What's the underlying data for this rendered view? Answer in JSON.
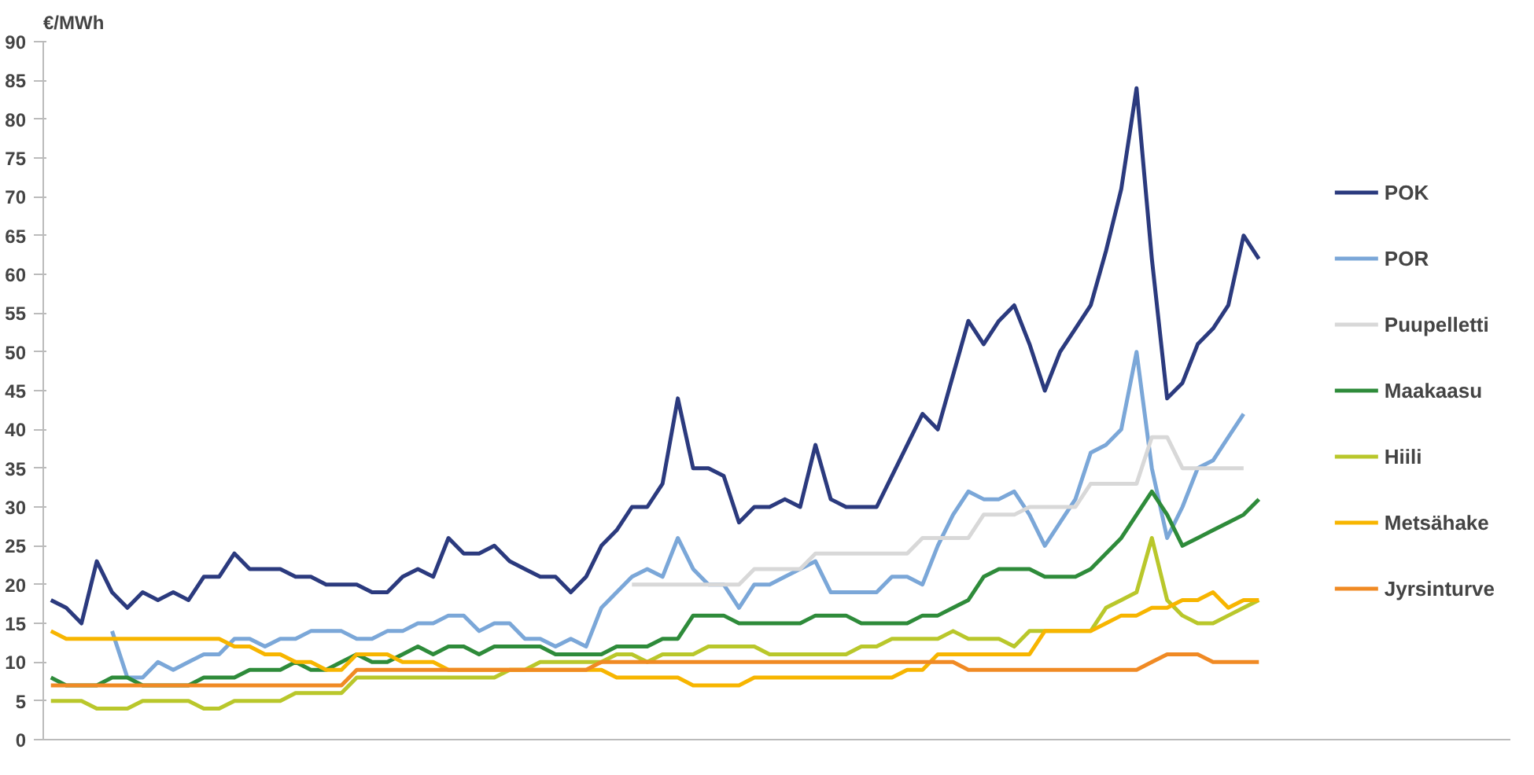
{
  "chart_data": {
    "type": "line",
    "ylabel": "€/MWh",
    "categories": [
      null,
      null,
      null,
      null,
      null,
      null,
      null,
      null,
      null,
      null,
      null,
      null,
      null,
      null,
      null,
      null,
      null,
      null,
      null,
      null,
      null,
      null,
      null,
      null,
      null,
      null,
      null,
      null,
      null,
      null,
      null,
      null,
      null,
      null,
      null,
      null,
      null,
      null,
      null,
      null,
      null,
      null,
      null,
      null,
      null,
      null,
      null,
      null,
      null,
      null,
      null,
      null,
      null,
      null,
      null,
      null,
      null,
      null,
      null,
      null,
      null,
      null,
      null,
      null,
      null,
      null,
      null,
      null,
      null,
      null,
      null,
      null,
      null,
      null,
      null,
      null,
      null,
      null,
      null,
      null
    ],
    "ylim": [
      0,
      90
    ],
    "yticks": [
      0,
      5,
      10,
      15,
      20,
      25,
      30,
      35,
      40,
      45,
      50,
      55,
      60,
      65,
      70,
      75,
      80,
      85,
      90
    ],
    "grid": false,
    "legend": "right",
    "tick_labels": "y",
    "series": [
      {
        "name": "POK",
        "color": "#2b3a7e",
        "values": [
          18,
          17,
          15,
          23,
          19,
          17,
          19,
          18,
          19,
          18,
          21,
          21,
          24,
          22,
          22,
          22,
          21,
          21,
          20,
          20,
          20,
          19,
          19,
          21,
          22,
          21,
          26,
          24,
          24,
          25,
          23,
          22,
          21,
          21,
          19,
          21,
          25,
          27,
          30,
          30,
          33,
          44,
          35,
          35,
          34,
          28,
          30,
          30,
          31,
          30,
          38,
          31,
          30,
          30,
          30,
          34,
          38,
          42,
          40,
          47,
          54,
          51,
          54,
          56,
          51,
          45,
          50,
          53,
          56,
          63,
          71,
          84,
          62,
          44,
          46,
          51,
          53,
          56,
          65,
          62
        ]
      },
      {
        "name": "POR",
        "color": "#7ba7d8",
        "values": [
          null,
          null,
          null,
          null,
          14,
          8,
          8,
          10,
          9,
          10,
          11,
          11,
          13,
          13,
          12,
          13,
          13,
          14,
          14,
          14,
          13,
          13,
          14,
          14,
          15,
          15,
          16,
          16,
          14,
          15,
          15,
          13,
          13,
          12,
          13,
          12,
          17,
          19,
          21,
          22,
          21,
          26,
          22,
          20,
          20,
          17,
          20,
          20,
          21,
          22,
          23,
          19,
          19,
          19,
          19,
          21,
          21,
          20,
          25,
          29,
          32,
          31,
          31,
          32,
          29,
          25,
          28,
          31,
          37,
          38,
          40,
          50,
          35,
          26,
          30,
          35,
          36,
          39,
          42,
          null
        ]
      },
      {
        "name": "Puupelletti",
        "color": "#d8d8d8",
        "values": [
          null,
          null,
          null,
          null,
          null,
          null,
          null,
          null,
          null,
          null,
          null,
          null,
          null,
          null,
          null,
          null,
          null,
          null,
          null,
          null,
          null,
          null,
          null,
          null,
          null,
          null,
          null,
          null,
          null,
          null,
          null,
          null,
          null,
          null,
          null,
          null,
          null,
          null,
          20,
          20,
          20,
          20,
          20,
          20,
          20,
          20,
          22,
          22,
          22,
          22,
          24,
          24,
          24,
          24,
          24,
          24,
          24,
          26,
          26,
          26,
          26,
          29,
          29,
          29,
          30,
          30,
          30,
          30,
          33,
          33,
          33,
          33,
          39,
          39,
          35,
          35,
          35,
          35,
          35,
          null
        ]
      },
      {
        "name": "Maakaasu",
        "color": "#2e8b3a",
        "values": [
          8,
          7,
          7,
          7,
          8,
          8,
          7,
          7,
          7,
          7,
          8,
          8,
          8,
          9,
          9,
          9,
          10,
          9,
          9,
          10,
          11,
          10,
          10,
          11,
          12,
          11,
          12,
          12,
          11,
          12,
          12,
          12,
          12,
          11,
          11,
          11,
          11,
          12,
          12,
          12,
          13,
          13,
          16,
          16,
          16,
          15,
          15,
          15,
          15,
          15,
          16,
          16,
          16,
          15,
          15,
          15,
          15,
          16,
          16,
          17,
          18,
          21,
          22,
          22,
          22,
          21,
          21,
          21,
          22,
          24,
          26,
          29,
          32,
          29,
          25,
          26,
          27,
          28,
          29,
          31
        ]
      },
      {
        "name": "Hiili",
        "color": "#b9c72b",
        "values": [
          5,
          5,
          5,
          4,
          4,
          4,
          5,
          5,
          5,
          5,
          4,
          4,
          5,
          5,
          5,
          5,
          6,
          6,
          6,
          6,
          8,
          8,
          8,
          8,
          8,
          8,
          8,
          8,
          8,
          8,
          9,
          9,
          10,
          10,
          10,
          10,
          10,
          11,
          11,
          10,
          11,
          11,
          11,
          12,
          12,
          12,
          12,
          11,
          11,
          11,
          11,
          11,
          11,
          12,
          12,
          13,
          13,
          13,
          13,
          14,
          13,
          13,
          13,
          12,
          14,
          14,
          14,
          14,
          14,
          17,
          18,
          19,
          26,
          18,
          16,
          15,
          15,
          16,
          17,
          18
        ]
      },
      {
        "name": "Metsähake",
        "color": "#f7b500",
        "values": [
          14,
          13,
          13,
          13,
          13,
          13,
          13,
          13,
          13,
          13,
          13,
          13,
          12,
          12,
          11,
          11,
          10,
          10,
          9,
          9,
          11,
          11,
          11,
          10,
          10,
          10,
          9,
          9,
          9,
          9,
          9,
          9,
          9,
          9,
          9,
          9,
          9,
          8,
          8,
          8,
          8,
          8,
          7,
          7,
          7,
          7,
          8,
          8,
          8,
          8,
          8,
          8,
          8,
          8,
          8,
          8,
          9,
          9,
          11,
          11,
          11,
          11,
          11,
          11,
          11,
          14,
          14,
          14,
          14,
          15,
          16,
          16,
          17,
          17,
          18,
          18,
          19,
          17,
          18,
          18
        ]
      },
      {
        "name": "Jyrsinturve",
        "color": "#f08a24",
        "values": [
          7,
          7,
          7,
          7,
          7,
          7,
          7,
          7,
          7,
          7,
          7,
          7,
          7,
          7,
          7,
          7,
          7,
          7,
          7,
          7,
          9,
          9,
          9,
          9,
          9,
          9,
          9,
          9,
          9,
          9,
          9,
          9,
          9,
          9,
          9,
          9,
          10,
          10,
          10,
          10,
          10,
          10,
          10,
          10,
          10,
          10,
          10,
          10,
          10,
          10,
          10,
          10,
          10,
          10,
          10,
          10,
          10,
          10,
          10,
          10,
          9,
          9,
          9,
          9,
          9,
          9,
          9,
          9,
          9,
          9,
          9,
          9,
          10,
          11,
          11,
          11,
          10,
          10,
          10,
          10
        ]
      }
    ]
  }
}
